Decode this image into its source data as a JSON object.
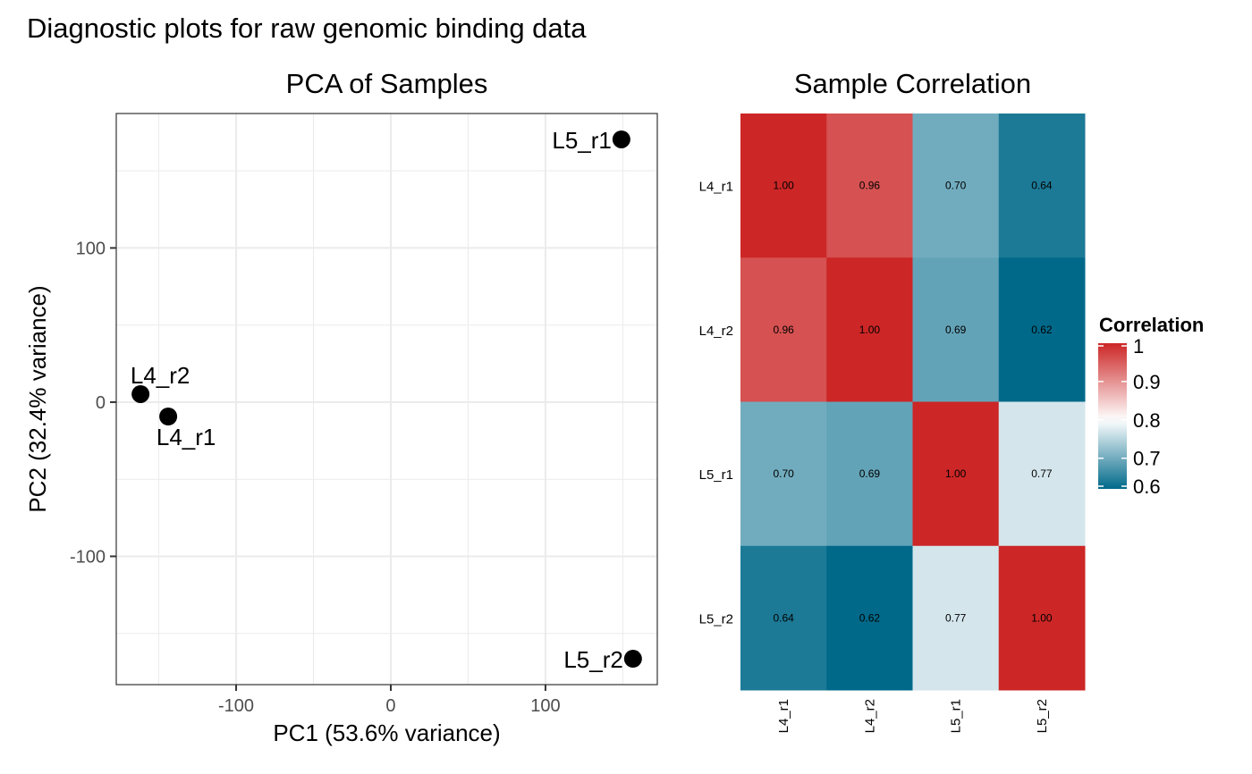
{
  "figure_title": "Diagnostic plots for raw genomic binding data",
  "chart_data": [
    {
      "type": "scatter",
      "title": "PCA of Samples",
      "xlabel": "PC1 (53.6% variance)",
      "ylabel": "PC2 (32.4% variance)",
      "xlim": [
        -177.5,
        172.3
      ],
      "ylim": [
        -183.2,
        187.2
      ],
      "x_ticks": [
        -100,
        0,
        100
      ],
      "y_ticks": [
        -100,
        0,
        100
      ],
      "x_tick_labels": [
        "-100",
        "0",
        "100"
      ],
      "y_tick_labels": [
        "-100",
        "0",
        "100"
      ],
      "x_minor": [
        -150,
        -50,
        50,
        150
      ],
      "y_minor": [
        -150,
        -50,
        50,
        150
      ],
      "grid": true,
      "legend": "none",
      "points": [
        {
          "label": "L4_r1",
          "x": -143.9,
          "y": -9.3,
          "label_pos": "below"
        },
        {
          "label": "L4_r2",
          "x": -161.8,
          "y": 5.2,
          "label_pos": "above"
        },
        {
          "label": "L5_r1",
          "x": 149.1,
          "y": 170.4,
          "label_pos": "left"
        },
        {
          "label": "L5_r2",
          "x": 156.6,
          "y": -166.4,
          "label_pos": "left"
        }
      ]
    },
    {
      "type": "heatmap",
      "title": "Sample Correlation",
      "rows": [
        "L4_r1",
        "L4_r2",
        "L5_r1",
        "L5_r2"
      ],
      "columns": [
        "L4_r1",
        "L4_r2",
        "L5_r1",
        "L5_r2"
      ],
      "values": [
        [
          1.0,
          0.96,
          0.7,
          0.64
        ],
        [
          0.96,
          1.0,
          0.69,
          0.62
        ],
        [
          0.7,
          0.69,
          1.0,
          0.77
        ],
        [
          0.64,
          0.62,
          0.77,
          1.0
        ]
      ],
      "value_labels": [
        [
          "1.00",
          "0.96",
          "0.70",
          "0.64"
        ],
        [
          "0.96",
          "1.00",
          "0.69",
          "0.62"
        ],
        [
          "0.70",
          "0.69",
          "1.00",
          "0.77"
        ],
        [
          "0.64",
          "0.62",
          "0.77",
          "1.00"
        ]
      ],
      "colorscale": {
        "low": "#00698A",
        "mid": "#FFFFFF",
        "high": "#CC2626",
        "midpoint": 0.8,
        "range": [
          0.62,
          1.0
        ]
      },
      "legend": {
        "title": "Correlation",
        "position": "right",
        "ticks": [
          1,
          0.9,
          0.8,
          0.7,
          0.6
        ],
        "tick_labels": [
          "1",
          "0.9",
          "0.8",
          "0.7",
          "0.6"
        ]
      }
    }
  ]
}
